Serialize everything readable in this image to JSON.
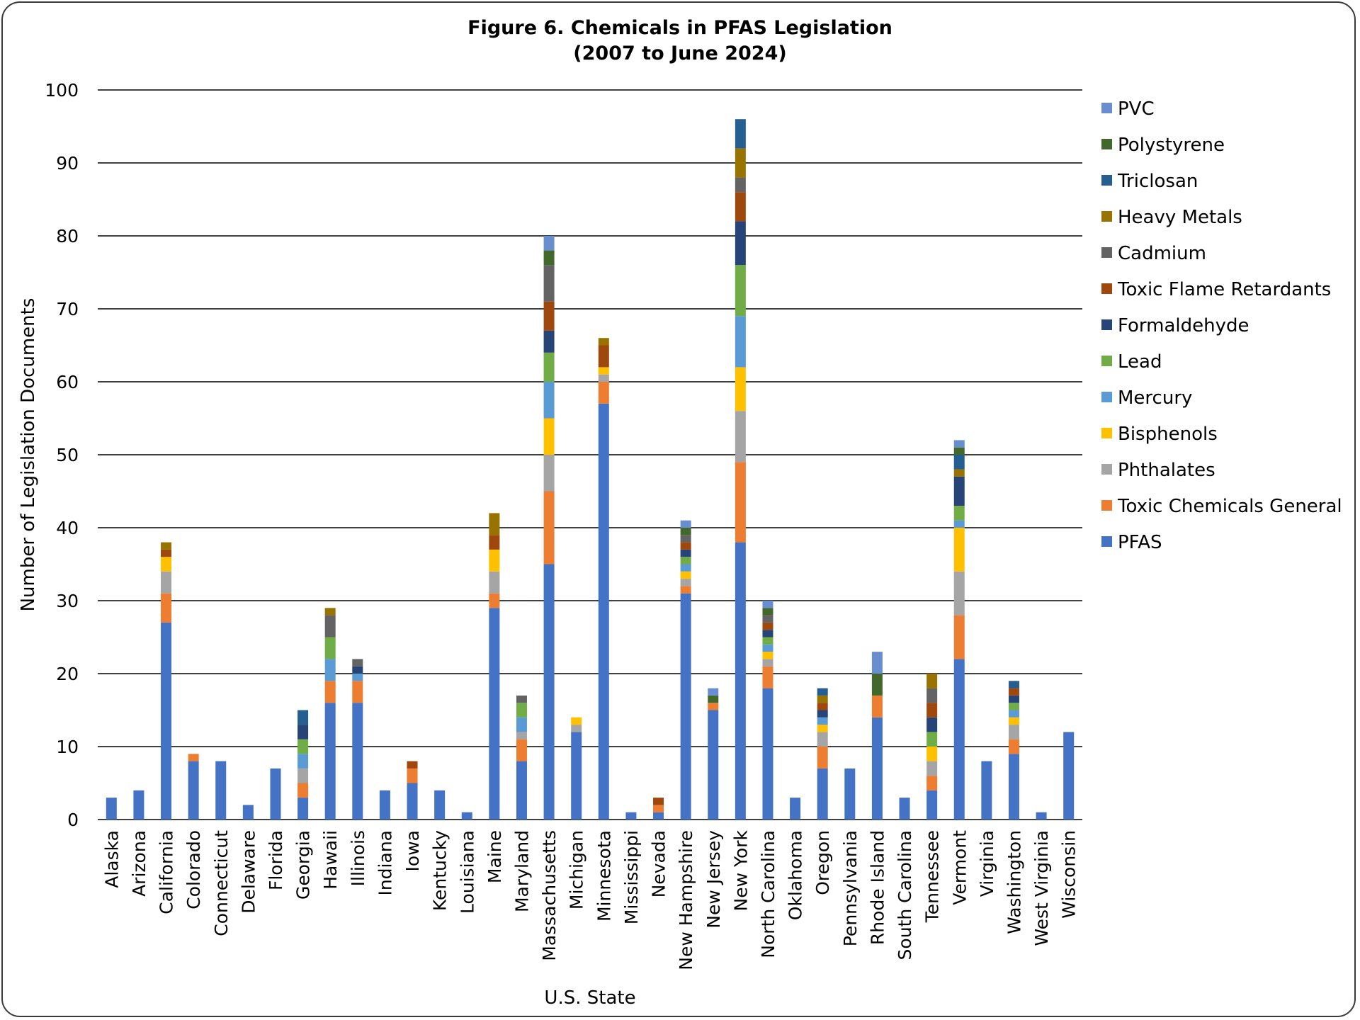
{
  "colors": {
    "PFAS": "#4472C4",
    "Toxic Chemicals General": "#ED7D31",
    "Phthalates": "#A5A5A5",
    "Bisphenols": "#FFC000",
    "Mercury": "#5B9BD5",
    "Lead": "#70AD47",
    "Formaldehyde": "#264478",
    "Toxic Flame Retardants": "#9E480E",
    "Cadmium": "#636363",
    "Heavy Metals": "#997300",
    "Triclosan": "#255E91",
    "Polystyrene": "#43682B",
    "PVC": "#698ED0"
  },
  "chart_data": {
    "type": "bar",
    "stacked": true,
    "title_line1": "Figure 6. Chemicals in PFAS Legislation",
    "title_line2": "(2007 to June 2024)",
    "xlabel": "U.S. State",
    "ylabel": "Number of Legislation Documents",
    "ylim": [
      0,
      100
    ],
    "yticks": [
      0,
      10,
      20,
      30,
      40,
      50,
      60,
      70,
      80,
      90,
      100
    ],
    "grid": true,
    "legend_position": "right",
    "categories": [
      "Alaska",
      "Arizona",
      "California",
      "Colorado",
      "Connecticut",
      "Delaware",
      "Florida",
      "Georgia",
      "Hawaii",
      "Illinois",
      "Indiana",
      "Iowa",
      "Kentucky",
      "Louisiana",
      "Maine",
      "Maryland",
      "Massachusetts",
      "Michigan",
      "Minnesota",
      "Mississippi",
      "Nevada",
      "New Hampshire",
      "New Jersey",
      "New York",
      "North Carolina",
      "Oklahoma",
      "Oregon",
      "Pennsylvania",
      "Rhode Island",
      "South Carolina",
      "Tennessee",
      "Vermont",
      "Virginia",
      "Washington",
      "West Virginia",
      "Wisconsin"
    ],
    "series": [
      {
        "name": "PFAS",
        "values": [
          3,
          4,
          27,
          8,
          8,
          2,
          7,
          3,
          16,
          16,
          4,
          5,
          4,
          1,
          29,
          8,
          35,
          12,
          57,
          1,
          1,
          31,
          15,
          38,
          18,
          3,
          7,
          7,
          14,
          3,
          4,
          22,
          8,
          9,
          1,
          12
        ]
      },
      {
        "name": "Toxic Chemicals General",
        "values": [
          0,
          0,
          4,
          1,
          0,
          0,
          0,
          2,
          3,
          3,
          0,
          2,
          0,
          0,
          2,
          3,
          10,
          0,
          3,
          0,
          1,
          1,
          1,
          11,
          3,
          0,
          3,
          0,
          3,
          0,
          2,
          6,
          0,
          2,
          0,
          0
        ]
      },
      {
        "name": "Phthalates",
        "values": [
          0,
          0,
          3,
          0,
          0,
          0,
          0,
          2,
          0,
          0,
          0,
          0,
          0,
          0,
          3,
          1,
          5,
          1,
          1,
          0,
          0,
          1,
          0,
          7,
          1,
          0,
          2,
          0,
          0,
          0,
          2,
          6,
          0,
          2,
          0,
          0
        ]
      },
      {
        "name": "Bisphenols",
        "values": [
          0,
          0,
          2,
          0,
          0,
          0,
          0,
          0,
          0,
          0,
          0,
          0,
          0,
          0,
          3,
          0,
          5,
          1,
          1,
          0,
          0,
          1,
          0,
          6,
          1,
          0,
          1,
          0,
          0,
          0,
          2,
          6,
          0,
          1,
          0,
          0
        ]
      },
      {
        "name": "Mercury",
        "values": [
          0,
          0,
          0,
          0,
          0,
          0,
          0,
          2,
          3,
          1,
          0,
          0,
          0,
          0,
          0,
          2,
          5,
          0,
          0,
          0,
          0,
          1,
          0,
          7,
          1,
          0,
          1,
          0,
          0,
          0,
          0,
          1,
          0,
          1,
          0,
          0
        ]
      },
      {
        "name": "Lead",
        "values": [
          0,
          0,
          0,
          0,
          0,
          0,
          0,
          2,
          3,
          0,
          0,
          0,
          0,
          0,
          0,
          2,
          4,
          0,
          0,
          0,
          0,
          1,
          0,
          7,
          1,
          0,
          0,
          0,
          0,
          0,
          2,
          2,
          0,
          1,
          0,
          0
        ]
      },
      {
        "name": "Formaldehyde",
        "values": [
          0,
          0,
          0,
          0,
          0,
          0,
          0,
          2,
          0,
          1,
          0,
          0,
          0,
          0,
          0,
          0,
          3,
          0,
          0,
          0,
          0,
          1,
          0,
          6,
          1,
          0,
          1,
          0,
          0,
          0,
          2,
          4,
          0,
          1,
          0,
          0
        ]
      },
      {
        "name": "Toxic Flame Retardants",
        "values": [
          0,
          0,
          1,
          0,
          0,
          0,
          0,
          0,
          0,
          0,
          0,
          1,
          0,
          0,
          2,
          0,
          4,
          0,
          3,
          0,
          1,
          1,
          0,
          4,
          1,
          0,
          1,
          0,
          0,
          0,
          2,
          0,
          0,
          1,
          0,
          0
        ]
      },
      {
        "name": "Cadmium",
        "values": [
          0,
          0,
          0,
          0,
          0,
          0,
          0,
          0,
          3,
          1,
          0,
          0,
          0,
          0,
          0,
          1,
          5,
          0,
          0,
          0,
          0,
          1,
          0,
          2,
          1,
          0,
          0,
          0,
          0,
          0,
          2,
          0,
          0,
          0,
          0,
          0
        ]
      },
      {
        "name": "Heavy Metals",
        "values": [
          0,
          0,
          1,
          0,
          0,
          0,
          0,
          0,
          1,
          0,
          0,
          0,
          0,
          0,
          3,
          0,
          0,
          0,
          1,
          0,
          0,
          0,
          0,
          4,
          0,
          0,
          1,
          0,
          0,
          0,
          2,
          1,
          0,
          0,
          0,
          0
        ]
      },
      {
        "name": "Triclosan",
        "values": [
          0,
          0,
          0,
          0,
          0,
          0,
          0,
          2,
          0,
          0,
          0,
          0,
          0,
          0,
          0,
          0,
          0,
          0,
          0,
          0,
          0,
          0,
          0,
          4,
          0,
          0,
          1,
          0,
          0,
          0,
          0,
          2,
          0,
          1,
          0,
          0
        ]
      },
      {
        "name": "Polystyrene",
        "values": [
          0,
          0,
          0,
          0,
          0,
          0,
          0,
          0,
          0,
          0,
          0,
          0,
          0,
          0,
          0,
          0,
          2,
          0,
          0,
          0,
          0,
          1,
          1,
          0,
          1,
          0,
          0,
          0,
          3,
          0,
          0,
          1,
          0,
          0,
          0,
          0
        ]
      },
      {
        "name": "PVC",
        "values": [
          0,
          0,
          0,
          0,
          0,
          0,
          0,
          0,
          0,
          0,
          0,
          0,
          0,
          0,
          0,
          0,
          2,
          0,
          0,
          0,
          0,
          1,
          1,
          0,
          1,
          0,
          0,
          0,
          3,
          0,
          0,
          1,
          0,
          0,
          0,
          0
        ]
      }
    ]
  }
}
